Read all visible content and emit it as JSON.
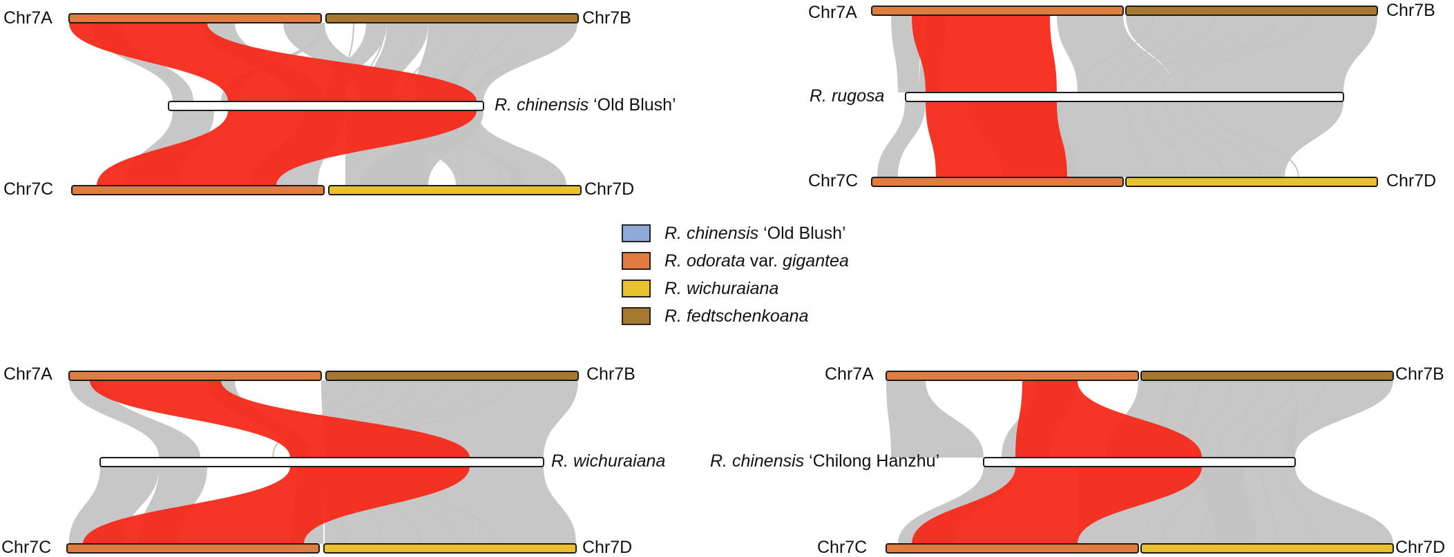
{
  "colors": {
    "odorata": "#E07D3E",
    "fedtschenkoana": "#A5792F",
    "wichuraiana": "#E9C12E",
    "chinensis_old_blush": "#8FA9DA",
    "query_bar": "#FFFFFF",
    "highlight_links": "#F52A1B",
    "background_links": "#C4C4C4"
  },
  "legend": [
    {
      "swatch": "#8FA9DA",
      "italic": "R. chinensis",
      "rest": " ‘Old Blush’"
    },
    {
      "swatch": "#E07D3E",
      "italic": "R. odorata",
      "mid": " var. ",
      "italic2": "gigantea"
    },
    {
      "swatch": "#E9C12E",
      "italic": "R. wichuraiana"
    },
    {
      "swatch": "#A5792F",
      "italic": "R. fedtschenkoana"
    }
  ],
  "panels": [
    {
      "query": {
        "italic": "R. chinensis",
        "rest": " ‘Old Blush’"
      },
      "labels": {
        "top_left": "Chr7A",
        "top_right": "Chr7B",
        "bottom_left": "Chr7C",
        "bottom_right": "Chr7D"
      }
    },
    {
      "query": {
        "italic": "R. rugosa",
        "rest": ""
      },
      "labels": {
        "top_left": "Chr7A",
        "top_right": "Chr7B",
        "bottom_left": "Chr7C",
        "bottom_right": "Chr7D"
      }
    },
    {
      "query": {
        "italic": "R. wichuraiana",
        "rest": ""
      },
      "labels": {
        "top_left": "Chr7A",
        "top_right": "Chr7B",
        "bottom_left": "Chr7C",
        "bottom_right": "Chr7D"
      }
    },
    {
      "query": {
        "italic": "R. chinensis",
        "rest": " ‘Chilong Hanzhu’"
      },
      "labels": {
        "top_left": "Chr7A",
        "top_right": "Chr7B",
        "bottom_left": "Chr7C",
        "bottom_right": "Chr7D"
      }
    }
  ]
}
